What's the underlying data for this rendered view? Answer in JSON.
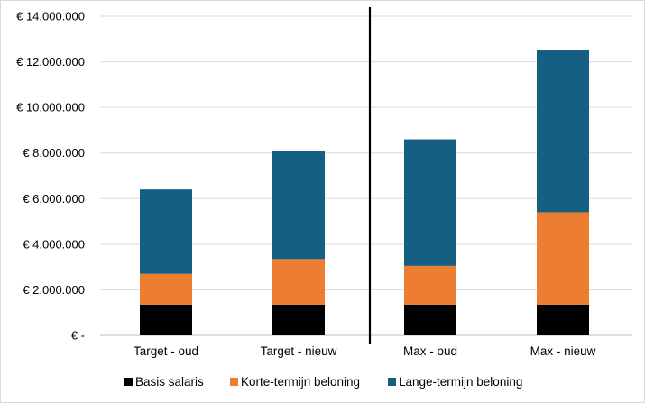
{
  "chart_data": {
    "type": "bar",
    "stacked": true,
    "categories": [
      "Target - oud",
      "Target - nieuw",
      "Max - oud",
      "Max - nieuw"
    ],
    "series": [
      {
        "name": "Basis salaris",
        "color": "#000000",
        "values": [
          1350000,
          1350000,
          1350000,
          1350000
        ]
      },
      {
        "name": "Korte-termijn beloning",
        "color": "#ED7D31",
        "values": [
          1350000,
          2000000,
          1700000,
          4050000
        ]
      },
      {
        "name": "Lange-termijn beloning",
        "color": "#156082",
        "values": [
          3700000,
          4750000,
          5550000,
          7100000
        ]
      }
    ],
    "y_ticks": [
      {
        "value": 0,
        "label": "€ -"
      },
      {
        "value": 2000000,
        "label": "€ 2.000.000"
      },
      {
        "value": 4000000,
        "label": "€ 4.000.000"
      },
      {
        "value": 6000000,
        "label": "€ 6.000.000"
      },
      {
        "value": 8000000,
        "label": "€ 8.000.000"
      },
      {
        "value": 10000000,
        "label": "€ 10.000.000"
      },
      {
        "value": 12000000,
        "label": "€ 12.000.000"
      },
      {
        "value": 14000000,
        "label": "€ 14.000.000"
      }
    ],
    "ylim": [
      0,
      14000000
    ],
    "grid": true,
    "legend_position": "bottom",
    "divider_between": [
      "Target - nieuw",
      "Max - oud"
    ],
    "title": "",
    "xlabel": "",
    "ylabel": ""
  }
}
